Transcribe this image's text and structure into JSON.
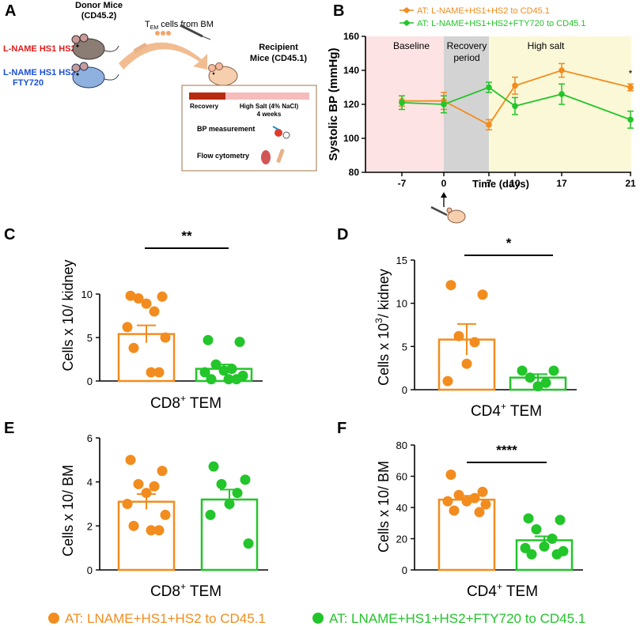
{
  "colors": {
    "orange": "#f28c1e",
    "green": "#22c52a",
    "baseline_bg": "#fde3e3",
    "recovery_bg": "#d3d3d3",
    "highsalt_bg": "#fbf8d8",
    "red_text": "#e21b1b",
    "blue_text": "#1a4fd6",
    "bar_recovery": "#b82a10",
    "bar_salt": "#f6bcbc"
  },
  "panels": {
    "A": "A",
    "B": "B",
    "C": "C",
    "D": "D",
    "E": "E",
    "F": "F"
  },
  "schematic": {
    "donor_title": "Donor Mice",
    "donor_subtitle": "(CD45.2)",
    "group1": "L-NAME HS1 HS2",
    "group2_line1": "L-NAME HS1 HS2",
    "group2_line2": "FTY720",
    "transfer_prefix": "T",
    "transfer_sub": "EM",
    "transfer_suffix": " cells from BM",
    "recipient_line1": "Recipient",
    "recipient_line2": "Mice (CD45.1)",
    "recovery_label": "Recovery",
    "salt_label": "High Salt (4% NaCl)",
    "salt_duration": "4 weeks",
    "bp_label": "BP measurement",
    "flow_label": "Flow cytometry"
  },
  "legend_bottom": {
    "orange": "AT: LNAME+HS1+HS2 to CD45.1",
    "green": "AT: LNAME+HS1+HS2+FTY720 to CD45.1"
  },
  "chart_data": [
    {
      "id": "B",
      "type": "line",
      "ylabel": "Systolic BP (mmHg)",
      "xlabel": "Time (days)",
      "ylim": [
        80,
        160
      ],
      "yticks": [
        80,
        100,
        120,
        140,
        160
      ],
      "xticks": [
        -7,
        0,
        7,
        10,
        17,
        21
      ],
      "phases": [
        "Baseline",
        "Recovery\nperiod",
        "High salt"
      ],
      "series": [
        {
          "name": "AT: L-NAME+HS1+HS2 to CD45.1",
          "color": "orange",
          "x": [
            -7,
            0,
            7,
            10,
            17,
            21
          ],
          "y": [
            122,
            122,
            108,
            131,
            140,
            130
          ],
          "err": [
            3,
            5,
            3,
            5,
            4,
            2
          ]
        },
        {
          "name": "AT: L-NAME+HS1+HS2+FTY720 to CD45.1",
          "color": "green",
          "x": [
            -7,
            0,
            7,
            10,
            17,
            21
          ],
          "y": [
            121,
            120,
            130,
            119,
            126,
            111
          ],
          "err": [
            4,
            5,
            3,
            5,
            6,
            5
          ]
        }
      ],
      "annotations": [
        "*"
      ]
    },
    {
      "id": "C",
      "type": "bar",
      "ylabel": "Cells x 10/ kidney",
      "xlabel_main": "CD8",
      "xlabel_sup": "+",
      "xlabel_rest": " TEM",
      "ylim": [
        0,
        10
      ],
      "yticks": [
        0,
        5,
        10
      ],
      "significance": "**",
      "groups": [
        {
          "color": "orange",
          "mean": 5.4,
          "sem": 1.0,
          "points": [
            9.8,
            9.7,
            9.5,
            8.0,
            8.9,
            6.2,
            5.0,
            3.8,
            1.0,
            1.0
          ]
        },
        {
          "color": "green",
          "mean": 1.4,
          "sem": 0.5,
          "points": [
            4.7,
            4.5,
            1.9,
            1.4,
            1.2,
            1.0,
            0.6,
            0.2,
            0.2,
            0.2
          ]
        }
      ]
    },
    {
      "id": "D",
      "type": "bar",
      "ylabel": "Cells x 10",
      "ylabel_sup": "3",
      "ylabel_rest": "/ kidney",
      "xlabel_main": "CD4",
      "xlabel_sup": "+",
      "xlabel_rest": " TEM",
      "ylim": [
        0,
        15
      ],
      "yticks": [
        0,
        5,
        10,
        15
      ],
      "significance": "*",
      "groups": [
        {
          "color": "orange",
          "mean": 5.8,
          "sem": 1.8,
          "points": [
            12.1,
            11.0,
            6.2,
            5.5,
            3.0,
            1.0
          ]
        },
        {
          "color": "green",
          "mean": 1.4,
          "sem": 0.4,
          "points": [
            2.2,
            2.2,
            1.4,
            0.8,
            0.4
          ]
        }
      ]
    },
    {
      "id": "E",
      "type": "bar",
      "ylabel": "Cells x 10/ BM",
      "xlabel_main": "CD8",
      "xlabel_sup": "+",
      "xlabel_rest": " TEM",
      "ylim": [
        0,
        6
      ],
      "yticks": [
        0,
        2,
        4,
        6
      ],
      "significance": "",
      "groups": [
        {
          "color": "orange",
          "mean": 3.1,
          "sem": 0.35,
          "points": [
            5.0,
            4.5,
            3.9,
            3.8,
            3.5,
            3.0,
            2.5,
            2.0,
            1.8,
            1.8
          ]
        },
        {
          "color": "green",
          "mean": 3.2,
          "sem": 0.45,
          "points": [
            4.7,
            4.1,
            3.9,
            3.5,
            3.0,
            2.5,
            1.2
          ]
        }
      ]
    },
    {
      "id": "F",
      "type": "bar",
      "ylabel": "Cells x 10/ BM",
      "xlabel_main": "CD4",
      "xlabel_sup": "+",
      "xlabel_rest": " TEM",
      "ylim": [
        0,
        80
      ],
      "yticks": [
        0,
        20,
        40,
        60,
        80
      ],
      "significance": "****",
      "groups": [
        {
          "color": "orange",
          "mean": 45,
          "sem": 2.5,
          "points": [
            61,
            50,
            48,
            46,
            44,
            44,
            42,
            38,
            37
          ]
        },
        {
          "color": "green",
          "mean": 19,
          "sem": 2.5,
          "points": [
            33,
            32,
            26,
            20,
            15,
            14,
            12,
            10,
            10
          ]
        }
      ]
    }
  ]
}
